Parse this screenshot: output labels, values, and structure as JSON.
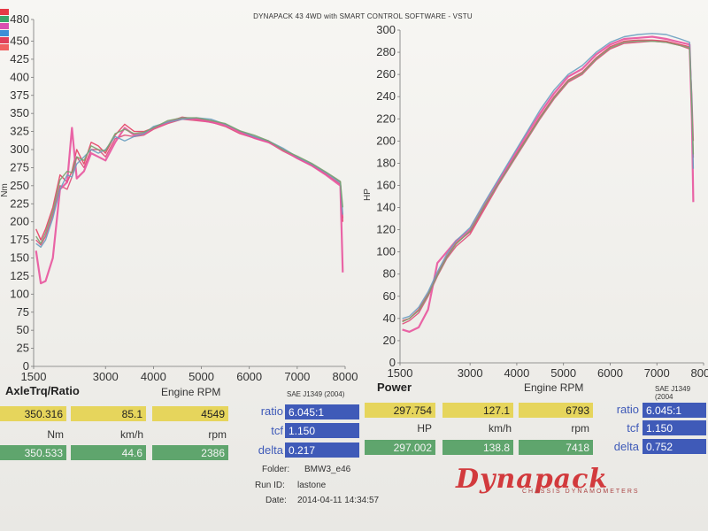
{
  "header": {
    "title": "DYNAPACK 43 4WD with SMART CONTROL SOFTWARE - VSTU"
  },
  "colors": {
    "run_swatches": [
      "#e63946",
      "#3aa56b",
      "#d94fb0",
      "#3c8fd6",
      "#e0405a",
      "#f06060"
    ],
    "curve_palette": [
      "#e63d63",
      "#de4a79",
      "#e8549d",
      "#6a9fc0",
      "#7aa36f",
      "#c63a4a"
    ],
    "yellow": "#e6d55c",
    "green": "#5fa56d",
    "blue": "#3f5ab8",
    "logo": "#d23a3d"
  },
  "left_panel": {
    "title": "AxleTrq/Ratio",
    "x_axis_label": "Engine RPM",
    "sae": "SAE J1349 (2004)",
    "row1": {
      "value": "350.316",
      "speed": "85.1",
      "rpm": "4549"
    },
    "units": {
      "value": "Nm",
      "speed": "km/h",
      "rpm": "rpm"
    },
    "row2": {
      "value": "350.533",
      "speed": "44.6",
      "rpm": "2386"
    },
    "ratio_label": "ratio",
    "ratio": "6.045:1",
    "tcf_label": "tcf",
    "tcf": "1.150",
    "delta_label": "delta",
    "delta": "0.217"
  },
  "right_panel": {
    "title": "Power",
    "x_axis_label": "Engine RPM",
    "sae": "SAE J1349 (2004",
    "row1": {
      "value": "297.754",
      "speed": "127.1",
      "rpm": "6793"
    },
    "units": {
      "value": "HP",
      "speed": "km/h",
      "rpm": "rpm"
    },
    "row2": {
      "value": "297.002",
      "speed": "138.8",
      "rpm": "7418"
    },
    "ratio_label": "ratio",
    "ratio": "6.045:1",
    "tcf_label": "tcf",
    "tcf": "1.150",
    "delta_label": "delta",
    "delta": "0.752"
  },
  "meta": {
    "folder_label": "Folder:",
    "folder": "BMW3_e46",
    "run_label": "Run ID:",
    "run": "lastone",
    "date_label": "Date:",
    "date": "2014-04-11 14:34:57"
  },
  "logo": {
    "text": "Dynapack",
    "sub": "CHASSIS DYNAMOMETERS"
  },
  "chart_data": [
    {
      "type": "line",
      "title": "AxleTrq/Ratio",
      "xlabel": "Engine RPM",
      "ylabel": "Nm",
      "xlim": [
        1500,
        8000
      ],
      "ylim": [
        0,
        480
      ],
      "xticks": [
        1500,
        3000,
        4000,
        5000,
        6000,
        7000,
        8000
      ],
      "yticks": [
        0,
        25,
        50,
        75,
        100,
        125,
        150,
        175,
        200,
        225,
        250,
        275,
        300,
        325,
        350,
        375,
        400,
        425,
        450,
        480
      ],
      "grid": false,
      "series": [
        {
          "x": [
            1550,
            1650,
            1750,
            1900,
            2050,
            2200,
            2300,
            2400,
            2550,
            2700,
            2850,
            3000,
            3200,
            3400,
            3600,
            3800,
            4000,
            4300,
            4600,
            4900,
            5200,
            5500,
            5800,
            6100,
            6400,
            6700,
            7000,
            7300,
            7600,
            7900,
            7950
          ],
          "y": [
            190,
            175,
            190,
            220,
            265,
            255,
            270,
            300,
            280,
            310,
            305,
            295,
            320,
            335,
            325,
            325,
            330,
            338,
            345,
            342,
            340,
            335,
            325,
            318,
            312,
            300,
            290,
            280,
            268,
            255,
            200
          ]
        },
        {
          "x": [
            1550,
            1650,
            1750,
            1900,
            2050,
            2200,
            2300,
            2400,
            2550,
            2700,
            2850,
            3000,
            3200,
            3400,
            3600,
            3800,
            4000,
            4300,
            4600,
            4900,
            5200,
            5500,
            5800,
            6100,
            6400,
            6700,
            7000,
            7300,
            7600,
            7900,
            7950
          ],
          "y": [
            175,
            168,
            180,
            210,
            250,
            245,
            262,
            290,
            275,
            300,
            300,
            290,
            315,
            320,
            318,
            320,
            328,
            336,
            342,
            340,
            338,
            332,
            322,
            316,
            310,
            298,
            288,
            278,
            266,
            252,
            205
          ]
        },
        {
          "x": [
            1550,
            1650,
            1750,
            1900,
            2050,
            2200,
            2300,
            2400,
            2550,
            2700,
            2850,
            3000,
            3200,
            3400,
            3600,
            3800,
            4000,
            4300,
            4600,
            4900,
            5200,
            5500,
            5800,
            6100,
            6400,
            6700,
            7000,
            7300,
            7600,
            7900,
            7950
          ],
          "y": [
            160,
            115,
            118,
            150,
            245,
            255,
            330,
            260,
            270,
            295,
            290,
            285,
            310,
            330,
            320,
            322,
            330,
            338,
            344,
            342,
            338,
            334,
            324,
            316,
            310,
            300,
            288,
            278,
            265,
            250,
            130
          ]
        },
        {
          "x": [
            1550,
            1650,
            1750,
            1900,
            2050,
            2200,
            2300,
            2400,
            2550,
            2700,
            2850,
            3000,
            3200,
            3400,
            3600,
            3800,
            4000,
            4300,
            4600,
            4900,
            5200,
            5500,
            5800,
            6100,
            6400,
            6700,
            7000,
            7300,
            7600,
            7900,
            7950
          ],
          "y": [
            170,
            165,
            175,
            205,
            245,
            265,
            262,
            280,
            290,
            300,
            295,
            300,
            318,
            312,
            318,
            322,
            332,
            338,
            342,
            344,
            342,
            335,
            326,
            318,
            312,
            302,
            290,
            280,
            268,
            254,
            210
          ]
        },
        {
          "x": [
            1550,
            1650,
            1750,
            1900,
            2050,
            2200,
            2300,
            2400,
            2550,
            2700,
            2850,
            3000,
            3200,
            3400,
            3600,
            3800,
            4000,
            4300,
            4600,
            4900,
            5200,
            5500,
            5800,
            6100,
            6400,
            6700,
            7000,
            7300,
            7600,
            7900,
            7950
          ],
          "y": [
            180,
            170,
            185,
            215,
            258,
            270,
            268,
            290,
            285,
            305,
            300,
            298,
            322,
            328,
            322,
            324,
            330,
            340,
            344,
            344,
            340,
            336,
            326,
            320,
            312,
            300,
            291,
            281,
            269,
            256,
            220
          ]
        }
      ]
    },
    {
      "type": "line",
      "title": "Power",
      "xlabel": "Engine RPM",
      "ylabel": "HP",
      "xlim": [
        1500,
        8000
      ],
      "ylim": [
        0,
        300
      ],
      "xticks": [
        1500,
        3000,
        4000,
        5000,
        6000,
        7000,
        8000
      ],
      "yticks": [
        0,
        20,
        40,
        60,
        80,
        100,
        120,
        140,
        160,
        180,
        200,
        220,
        240,
        260,
        280,
        300
      ],
      "grid": false,
      "series": [
        {
          "x": [
            1550,
            1700,
            1900,
            2100,
            2300,
            2500,
            2700,
            3000,
            3300,
            3600,
            3900,
            4200,
            4500,
            4800,
            5100,
            5400,
            5700,
            6000,
            6300,
            6600,
            6900,
            7200,
            7500,
            7700,
            7750,
            7780
          ],
          "y": [
            38,
            40,
            48,
            62,
            80,
            96,
            108,
            118,
            140,
            162,
            182,
            202,
            222,
            240,
            255,
            262,
            275,
            285,
            290,
            291,
            291,
            290,
            287,
            285,
            230,
            185
          ]
        },
        {
          "x": [
            1550,
            1700,
            1900,
            2100,
            2300,
            2500,
            2700,
            3000,
            3300,
            3600,
            3900,
            4200,
            4500,
            4800,
            5100,
            5400,
            5700,
            6000,
            6300,
            6600,
            6900,
            7200,
            7500,
            7700,
            7750,
            7780
          ],
          "y": [
            35,
            38,
            45,
            60,
            78,
            94,
            105,
            116,
            138,
            160,
            180,
            200,
            220,
            238,
            253,
            260,
            273,
            283,
            288,
            289,
            290,
            289,
            286,
            283,
            240,
            200
          ]
        },
        {
          "x": [
            1550,
            1700,
            1900,
            2100,
            2300,
            2500,
            2700,
            3000,
            3300,
            3600,
            3900,
            4200,
            4500,
            4800,
            5100,
            5400,
            5700,
            6000,
            6300,
            6600,
            6900,
            7200,
            7500,
            7700,
            7750,
            7780
          ],
          "y": [
            30,
            28,
            32,
            48,
            90,
            100,
            110,
            120,
            142,
            163,
            184,
            205,
            225,
            243,
            258,
            265,
            278,
            287,
            292,
            293,
            294,
            292,
            289,
            287,
            220,
            145
          ]
        },
        {
          "x": [
            1550,
            1700,
            1900,
            2100,
            2300,
            2500,
            2700,
            3000,
            3300,
            3600,
            3900,
            4200,
            4500,
            4800,
            5100,
            5400,
            5700,
            6000,
            6300,
            6600,
            6900,
            7200,
            7500,
            7700,
            7750,
            7780
          ],
          "y": [
            40,
            42,
            50,
            64,
            82,
            98,
            110,
            122,
            144,
            165,
            186,
            207,
            228,
            246,
            260,
            268,
            280,
            289,
            294,
            296,
            297,
            296,
            292,
            289,
            235,
            175
          ]
        },
        {
          "x": [
            1550,
            1700,
            1900,
            2100,
            2300,
            2500,
            2700,
            3000,
            3300,
            3600,
            3900,
            4200,
            4500,
            4800,
            5100,
            5400,
            5700,
            6000,
            6300,
            6600,
            6900,
            7200,
            7500,
            7700,
            7750,
            7780
          ],
          "y": [
            37,
            40,
            47,
            61,
            79,
            95,
            107,
            119,
            141,
            161,
            181,
            201,
            221,
            239,
            254,
            261,
            274,
            284,
            289,
            290,
            290,
            289,
            286,
            284,
            228,
            188
          ]
        }
      ]
    }
  ]
}
